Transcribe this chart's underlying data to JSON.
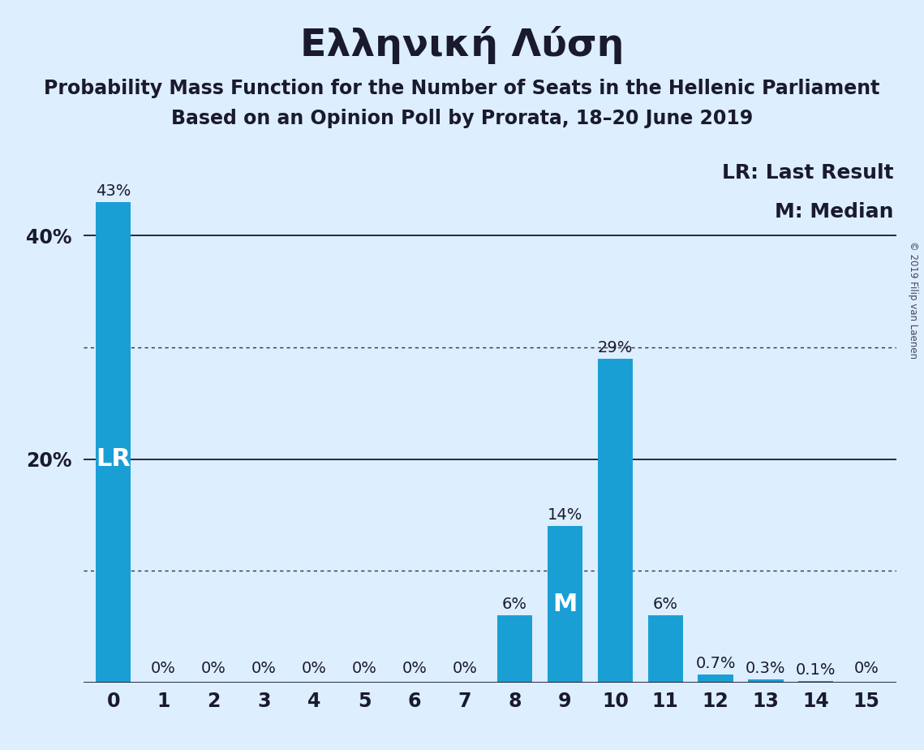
{
  "title": "Ελληνική Λύση",
  "subtitle1": "Probability Mass Function for the Number of Seats in the Hellenic Parliament",
  "subtitle2": "Based on an Opinion Poll by Prorata, 18–20 June 2019",
  "copyright": "© 2019 Filip van Laenen",
  "legend_lr": "LR: Last Result",
  "legend_m": "M: Median",
  "categories": [
    0,
    1,
    2,
    3,
    4,
    5,
    6,
    7,
    8,
    9,
    10,
    11,
    12,
    13,
    14,
    15
  ],
  "values": [
    43.0,
    0.0,
    0.0,
    0.0,
    0.0,
    0.0,
    0.0,
    0.0,
    6.0,
    14.0,
    29.0,
    6.0,
    0.7,
    0.3,
    0.1,
    0.0
  ],
  "bar_labels": [
    "43%",
    "0%",
    "0%",
    "0%",
    "0%",
    "0%",
    "0%",
    "0%",
    "6%",
    "14%",
    "29%",
    "6%",
    "0.7%",
    "0.3%",
    "0.1%",
    "0%"
  ],
  "bar_color": "#1a9fd4",
  "background_color": "#ddeeff",
  "text_color": "#1a1a2e",
  "lr_bar_index": 0,
  "lr_label": "LR",
  "median_bar_index": 9,
  "median_label": "M",
  "ylim": [
    0,
    47
  ],
  "ytick_labels": [
    "20%",
    "40%"
  ],
  "ytick_values": [
    20,
    40
  ],
  "solid_gridlines": [
    20,
    40
  ],
  "dotted_gridlines": [
    10,
    30
  ],
  "title_fontsize": 34,
  "subtitle_fontsize": 17,
  "tick_fontsize": 17,
  "bar_label_fontsize": 14,
  "legend_fontsize": 18,
  "inside_label_fontsize": 22
}
